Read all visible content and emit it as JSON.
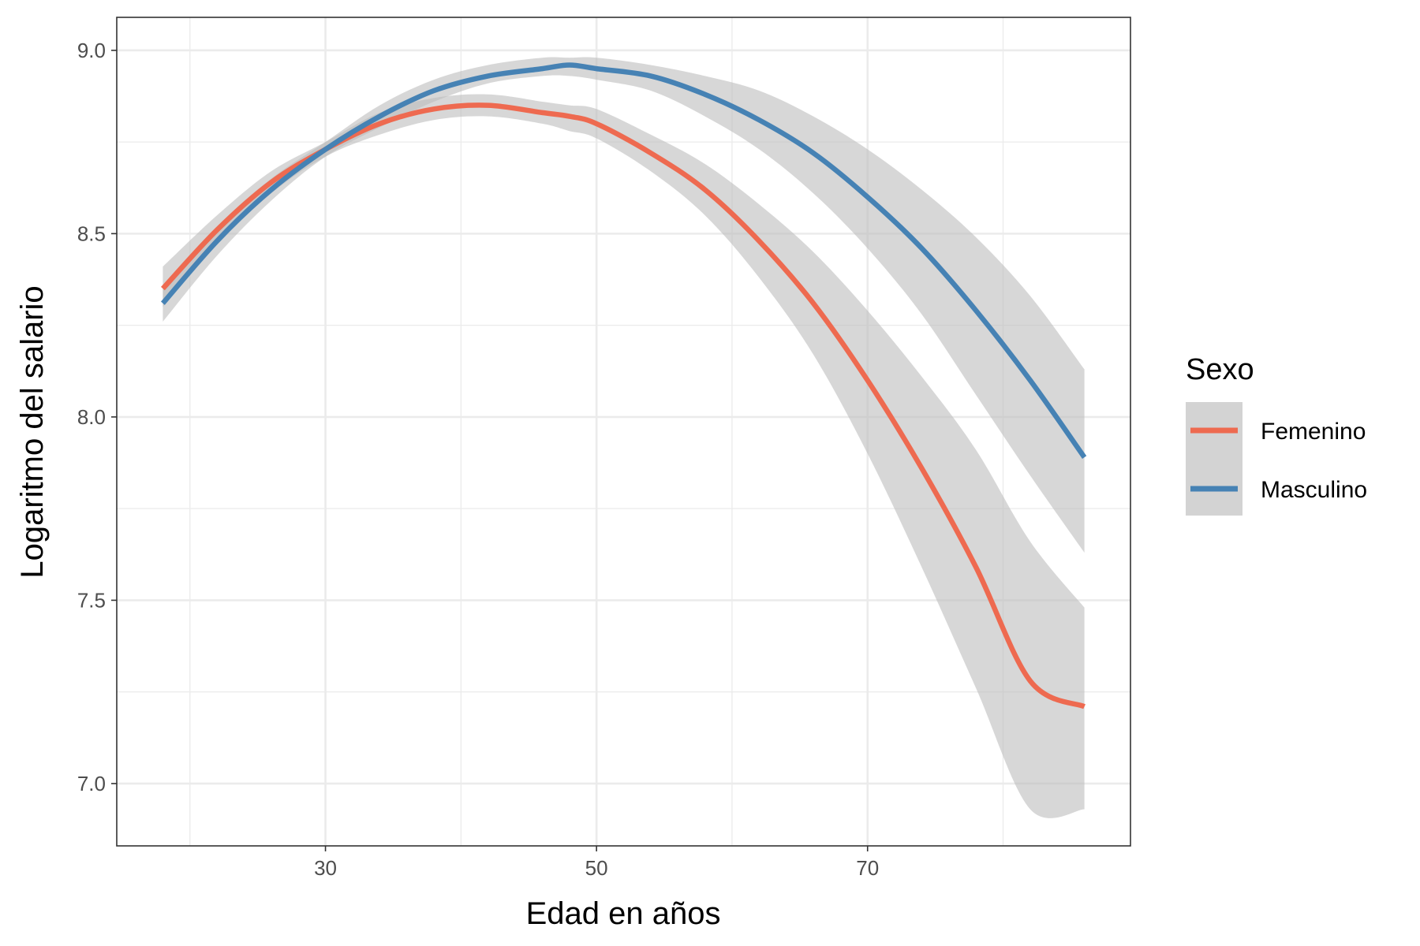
{
  "chart_data": {
    "type": "line",
    "title": "",
    "xlabel": "Edad en años",
    "ylabel": "Logaritmo del salario",
    "xlim": [
      14.6,
      89.4
    ],
    "ylim": [
      6.83,
      9.09
    ],
    "x_ticks": [
      30,
      50,
      70
    ],
    "x_tick_labels": [
      "30",
      "50",
      "70"
    ],
    "y_ticks": [
      7.0,
      7.5,
      8.0,
      8.5,
      9.0
    ],
    "y_tick_labels": [
      "7.0",
      "7.5",
      "8.0",
      "8.5",
      "9.0"
    ],
    "grid": true,
    "confidence_band": true,
    "legend": {
      "title": "Sexo",
      "position": "right"
    },
    "x": [
      18,
      22,
      26,
      30,
      34,
      38,
      42,
      46,
      48,
      50,
      54,
      58,
      62,
      66,
      70,
      74,
      78,
      82,
      86
    ],
    "series": [
      {
        "name": "Femenino",
        "color": "#EE6A50",
        "values": [
          8.35,
          8.51,
          8.64,
          8.73,
          8.8,
          8.84,
          8.85,
          8.83,
          8.82,
          8.8,
          8.72,
          8.62,
          8.48,
          8.31,
          8.1,
          7.86,
          7.59,
          7.28,
          7.21
        ],
        "lower": [
          8.3,
          8.47,
          8.61,
          8.71,
          8.77,
          8.81,
          8.82,
          8.8,
          8.78,
          8.76,
          8.67,
          8.55,
          8.38,
          8.17,
          7.9,
          7.59,
          7.26,
          6.93,
          6.93
        ],
        "upper": [
          8.41,
          8.55,
          8.67,
          8.75,
          8.83,
          8.87,
          8.88,
          8.86,
          8.85,
          8.84,
          8.77,
          8.69,
          8.58,
          8.45,
          8.29,
          8.11,
          7.91,
          7.66,
          7.48
        ]
      },
      {
        "name": "Masculino",
        "color": "#4682B4",
        "values": [
          8.31,
          8.48,
          8.62,
          8.73,
          8.82,
          8.89,
          8.93,
          8.95,
          8.96,
          8.95,
          8.93,
          8.88,
          8.81,
          8.72,
          8.6,
          8.46,
          8.29,
          8.1,
          7.89
        ],
        "lower": [
          8.26,
          8.44,
          8.59,
          8.71,
          8.79,
          8.86,
          8.91,
          8.93,
          8.93,
          8.92,
          8.89,
          8.82,
          8.73,
          8.61,
          8.46,
          8.28,
          8.06,
          7.84,
          7.63
        ],
        "upper": [
          8.36,
          8.52,
          8.65,
          8.75,
          8.85,
          8.92,
          8.96,
          8.98,
          8.98,
          8.98,
          8.96,
          8.93,
          8.89,
          8.82,
          8.73,
          8.62,
          8.49,
          8.33,
          8.13
        ]
      }
    ]
  }
}
